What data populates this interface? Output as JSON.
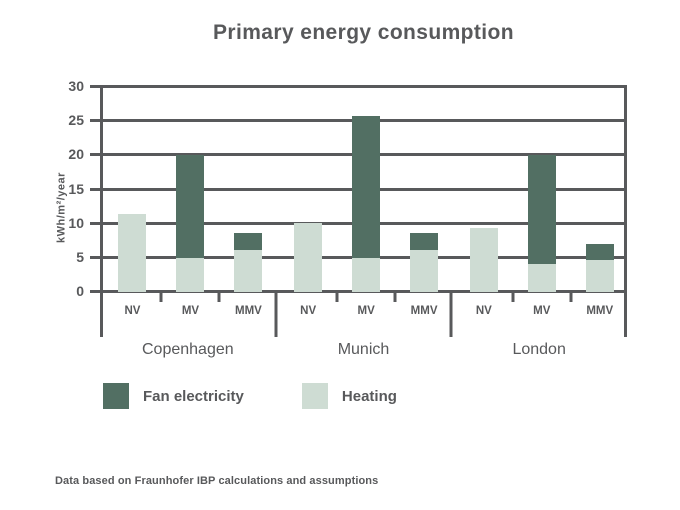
{
  "title": "Primary energy consumption",
  "footer": "Data based on Fraunhofer IBP calculations and assumptions",
  "colors": {
    "fan_electricity": "#526f63",
    "heating": "#cedcd3",
    "axis": "#58595b",
    "text": "#58595b",
    "background": "#ffffff"
  },
  "legend": [
    {
      "label": "Fan electricity",
      "color_key": "fan_electricity"
    },
    {
      "label": "Heating",
      "color_key": "heating"
    }
  ],
  "chart_data": {
    "type": "bar",
    "stacked": true,
    "title": "Primary energy consumption",
    "ylabel": "kWh/m²/year",
    "ylim": [
      0,
      30
    ],
    "yticks": [
      0,
      5,
      10,
      15,
      20,
      25,
      30
    ],
    "grid": true,
    "legend_position": "bottom-left",
    "categories": [
      "NV",
      "MV",
      "MMV"
    ],
    "groups": [
      {
        "label": "Copenhagen",
        "heating": [
          11.4,
          5.0,
          6.1
        ],
        "fan_electricity": [
          0,
          15.0,
          2.5
        ]
      },
      {
        "label": "Munich",
        "heating": [
          10.1,
          5.0,
          6.1
        ],
        "fan_electricity": [
          0,
          20.7,
          2.5
        ]
      },
      {
        "label": "London",
        "heating": [
          9.3,
          4.1,
          4.7
        ],
        "fan_electricity": [
          0,
          15.9,
          2.4
        ]
      }
    ],
    "series_order": [
      "heating",
      "fan_electricity"
    ]
  }
}
